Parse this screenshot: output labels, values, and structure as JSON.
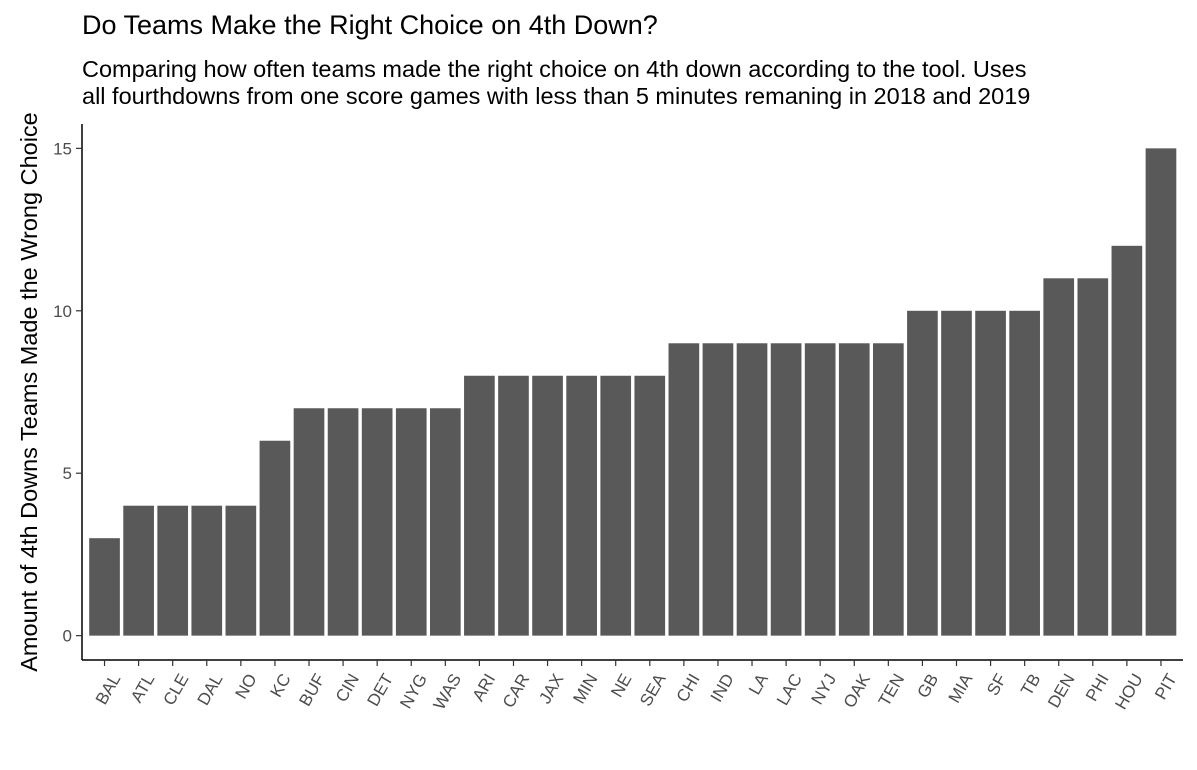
{
  "chart_data": {
    "type": "bar",
    "title": "Do Teams Make the Right Choice on 4th Down?",
    "subtitle": "Comparing how often teams made the right choice on 4th down according to the tool. Uses\nall fourthdowns from one score games with less than 5 minutes remaning in 2018 and 2019",
    "xlabel": "",
    "ylabel": "Amount of 4th Downs Teams Made the Wrong Choice",
    "ylim": [
      0,
      15.75
    ],
    "yticks": [
      0,
      5,
      10,
      15
    ],
    "grid": false,
    "bar_color": "#595959",
    "categories": [
      "BAL",
      "ATL",
      "CLE",
      "DAL",
      "NO",
      "KC",
      "BUF",
      "CIN",
      "DET",
      "NYG",
      "WAS",
      "ARI",
      "CAR",
      "JAX",
      "MIN",
      "NE",
      "SEA",
      "CHI",
      "IND",
      "LA",
      "LAC",
      "NYJ",
      "OAK",
      "TEN",
      "GB",
      "MIA",
      "SF",
      "TB",
      "DEN",
      "PHI",
      "HOU",
      "PIT"
    ],
    "values": [
      3,
      4,
      4,
      4,
      4,
      6,
      7,
      7,
      7,
      7,
      7,
      8,
      8,
      8,
      8,
      8,
      8,
      9,
      9,
      9,
      9,
      9,
      9,
      9,
      10,
      10,
      10,
      10,
      11,
      11,
      12,
      15
    ]
  }
}
